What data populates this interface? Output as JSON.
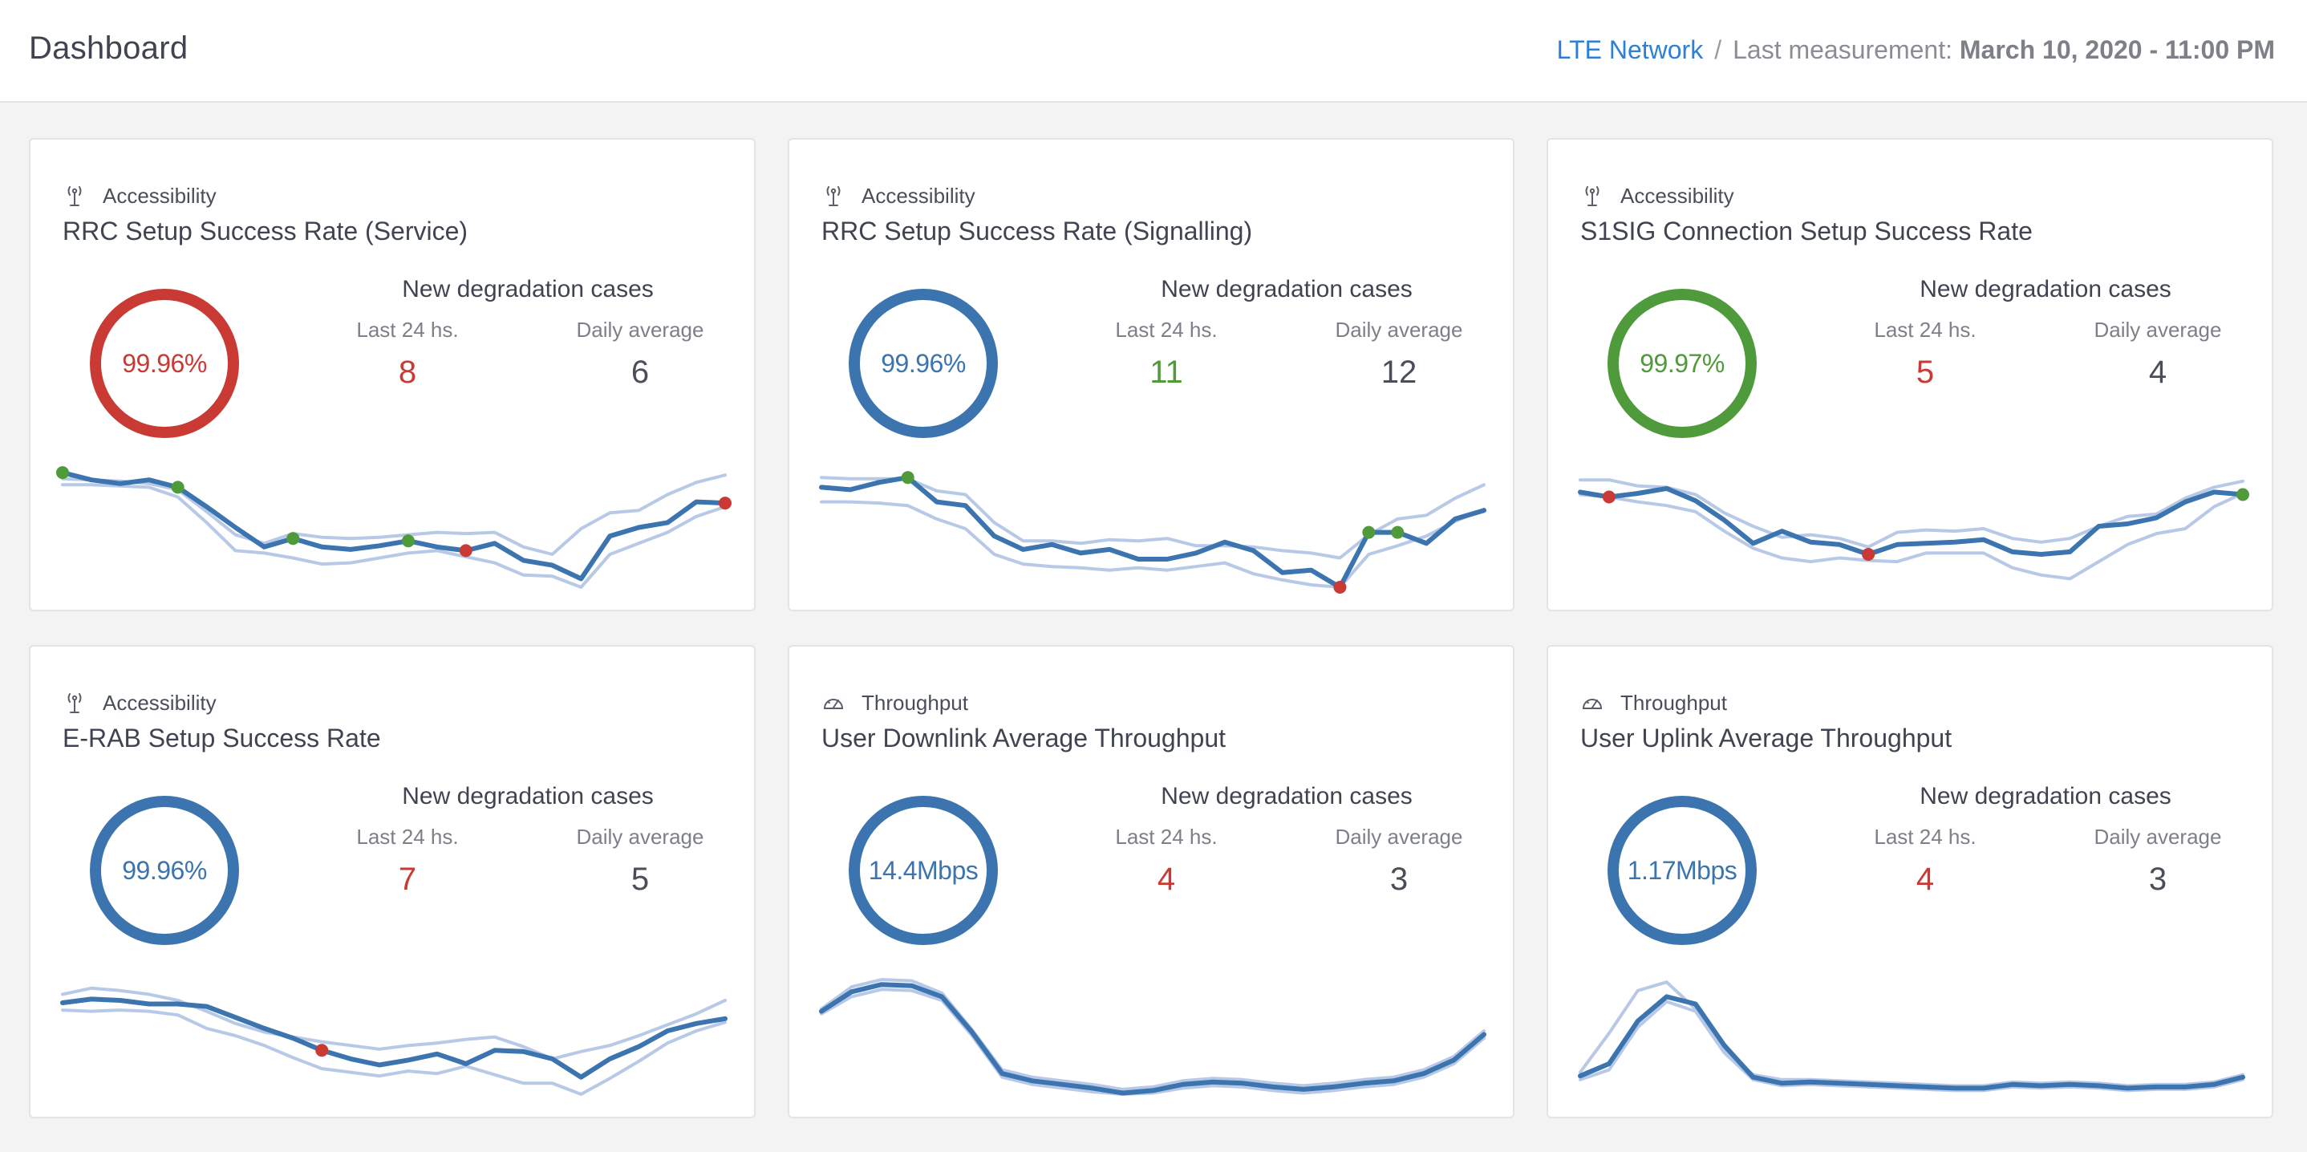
{
  "header": {
    "title": "Dashboard",
    "network_link": "LTE Network",
    "separator": "/",
    "last_measurement_label": "Last measurement:",
    "last_measurement_value": "March 10, 2020 - 11:00 PM"
  },
  "colors": {
    "red": "#c93a34",
    "blue": "#3b74ae",
    "green": "#4f9a3a",
    "band": "#b7c9e6",
    "neutral": "#4a4e59"
  },
  "common": {
    "degradation_heading": "New degradation cases",
    "last24_label": "Last 24 hs.",
    "daily_avg_label": "Daily average"
  },
  "cards": [
    {
      "category": "Accessibility",
      "category_icon": "antenna-icon",
      "title": "RRC Setup Success Rate (Service)",
      "value": "99.96%",
      "status": "red",
      "last24": "8",
      "last24_status": "red",
      "daily_avg": "6",
      "series": [
        94,
        88,
        85,
        88,
        82,
        66,
        49,
        33,
        40,
        33,
        31,
        34,
        38,
        33,
        30,
        36,
        22,
        18,
        7,
        42,
        49,
        53,
        70,
        69
      ],
      "upper": [
        89,
        88,
        87,
        85,
        80,
        62,
        43,
        36,
        44,
        41,
        40,
        41,
        43,
        45,
        44,
        45,
        33,
        27,
        48,
        61,
        63,
        76,
        86,
        92
      ],
      "lower": [
        84,
        84,
        83,
        82,
        74,
        53,
        30,
        28,
        24,
        19,
        20,
        24,
        28,
        30,
        25,
        20,
        10,
        9,
        0,
        27,
        36,
        45,
        58,
        66
      ],
      "markers": [
        {
          "i": 0,
          "c": "green"
        },
        {
          "i": 4,
          "c": "green"
        },
        {
          "i": 8,
          "c": "green"
        },
        {
          "i": 12,
          "c": "green"
        },
        {
          "i": 14,
          "c": "red"
        },
        {
          "i": 23,
          "c": "red"
        }
      ]
    },
    {
      "category": "Accessibility",
      "category_icon": "antenna-icon",
      "title": "RRC Setup Success Rate (Signalling)",
      "value": "99.96%",
      "status": "blue",
      "last24": "11",
      "last24_status": "green",
      "daily_avg": "12",
      "series": [
        82,
        80,
        86,
        90,
        70,
        67,
        42,
        31,
        35,
        28,
        31,
        23,
        23,
        28,
        37,
        30,
        12,
        14,
        0,
        45,
        45,
        36,
        56,
        63
      ],
      "upper": [
        90,
        89,
        89,
        89,
        79,
        76,
        53,
        38,
        38,
        36,
        39,
        38,
        40,
        34,
        34,
        33,
        30,
        28,
        24,
        43,
        56,
        59,
        73,
        84
      ],
      "lower": [
        70,
        70,
        69,
        67,
        56,
        48,
        27,
        19,
        17,
        16,
        14,
        16,
        14,
        17,
        20,
        11,
        6,
        2,
        0,
        27,
        34,
        42,
        54,
        64
      ],
      "markers": [
        {
          "i": 3,
          "c": "green"
        },
        {
          "i": 18,
          "c": "red"
        },
        {
          "i": 19,
          "c": "green"
        },
        {
          "i": 20,
          "c": "green"
        }
      ]
    },
    {
      "category": "Accessibility",
      "category_icon": "antenna-icon",
      "title": "S1SIG Connection Setup Success Rate",
      "value": "99.97%",
      "status": "green",
      "last24": "5",
      "last24_status": "red",
      "daily_avg": "4",
      "series": [
        78,
        74,
        77,
        81,
        71,
        55,
        36,
        46,
        37,
        35,
        27,
        35,
        36,
        37,
        39,
        29,
        27,
        29,
        50,
        52,
        57,
        70,
        78,
        76
      ],
      "upper": [
        88,
        88,
        83,
        82,
        76,
        61,
        50,
        41,
        43,
        40,
        33,
        45,
        47,
        46,
        48,
        40,
        37,
        40,
        50,
        58,
        60,
        73,
        82,
        87
      ],
      "lower": [
        76,
        74,
        70,
        67,
        62,
        46,
        32,
        24,
        21,
        24,
        22,
        21,
        28,
        28,
        28,
        16,
        10,
        7,
        21,
        35,
        44,
        48,
        66,
        77
      ],
      "markers": [
        {
          "i": 1,
          "c": "red"
        },
        {
          "i": 10,
          "c": "red"
        },
        {
          "i": 23,
          "c": "green"
        }
      ]
    },
    {
      "category": "Accessibility",
      "category_icon": "antenna-icon",
      "title": "E-RAB Setup Success Rate",
      "value": "99.96%",
      "status": "blue",
      "last24": "7",
      "last24_status": "red",
      "daily_avg": "5",
      "series": [
        75,
        78,
        77,
        74,
        74,
        72,
        63,
        54,
        46,
        36,
        29,
        24,
        28,
        33,
        25,
        36,
        35,
        29,
        14,
        29,
        39,
        52,
        58,
        62
      ],
      "upper": [
        82,
        87,
        85,
        82,
        77,
        68,
        58,
        51,
        47,
        43,
        40,
        37,
        40,
        42,
        45,
        47,
        39,
        29,
        35,
        40,
        48,
        57,
        66,
        77
      ],
      "lower": [
        69,
        68,
        69,
        68,
        65,
        54,
        48,
        40,
        30,
        21,
        18,
        15,
        19,
        17,
        23,
        16,
        9,
        9,
        0,
        13,
        27,
        42,
        52,
        59
      ],
      "markers": [
        {
          "i": 9,
          "c": "red"
        }
      ]
    },
    {
      "category": "Throughput",
      "category_icon": "speedometer-icon",
      "title": "User Downlink Average Throughput",
      "value": "14.4Mbps",
      "status": "blue",
      "last24": "4",
      "last24_status": "red",
      "daily_avg": "3",
      "series": [
        68,
        84,
        90,
        89,
        80,
        51,
        17,
        11,
        8,
        5,
        1,
        3,
        8,
        10,
        9,
        6,
        4,
        6,
        9,
        11,
        17,
        28,
        49
      ],
      "upper": [
        70,
        88,
        94,
        93,
        83,
        53,
        20,
        14,
        11,
        8,
        4,
        6,
        11,
        13,
        12,
        9,
        7,
        9,
        12,
        14,
        20,
        31,
        52
      ],
      "lower": [
        66,
        80,
        86,
        85,
        77,
        48,
        14,
        8,
        5,
        2,
        0,
        1,
        5,
        7,
        6,
        3,
        1,
        3,
        6,
        8,
        14,
        25,
        46
      ],
      "markers": []
    },
    {
      "category": "Throughput",
      "category_icon": "speedometer-icon",
      "title": "User Uplink Average Throughput",
      "value": "1.17Mbps",
      "status": "blue",
      "last24": "4",
      "last24_status": "red",
      "daily_avg": "3",
      "series": [
        15,
        25,
        60,
        80,
        74,
        40,
        14,
        9,
        10,
        9,
        8,
        7,
        6,
        5,
        5,
        8,
        7,
        8,
        7,
        5,
        6,
        6,
        8,
        14
      ],
      "upper": [
        18,
        50,
        85,
        92,
        70,
        36,
        16,
        12,
        12,
        11,
        10,
        9,
        8,
        7,
        7,
        10,
        9,
        10,
        9,
        7,
        8,
        8,
        10,
        16
      ],
      "lower": [
        12,
        20,
        55,
        76,
        68,
        34,
        12,
        7,
        8,
        7,
        6,
        5,
        4,
        3,
        3,
        6,
        5,
        6,
        5,
        3,
        4,
        4,
        6,
        12
      ],
      "markers": []
    }
  ]
}
